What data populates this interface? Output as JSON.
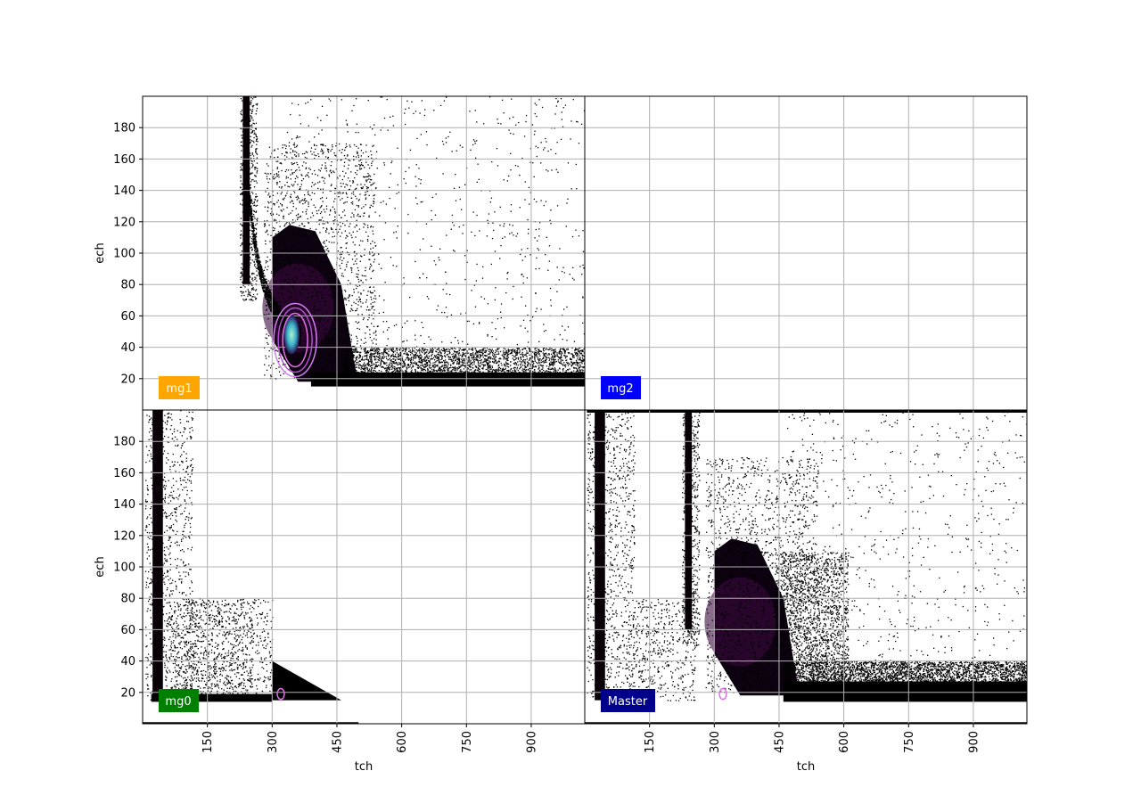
{
  "chart_data": [
    {
      "type": "heatmap",
      "panel": "top-left",
      "label": "mg1",
      "label_color": "#ffa500",
      "xlabel": "",
      "ylabel": "ech",
      "xlim": [
        0,
        1024
      ],
      "ylim": [
        0,
        200
      ],
      "xticks": [],
      "yticks": [
        20,
        40,
        60,
        80,
        100,
        120,
        140,
        160,
        180
      ],
      "grid": true,
      "density": {
        "diagonal_band": {
          "tch": 240,
          "ech_min": 80,
          "ech_max": 200
        },
        "curved_tail": {
          "tch_start": 330,
          "tch_end": 1024,
          "ech_floor": 18
        },
        "dense_region": {
          "tch": [
            300,
            460
          ],
          "ech": [
            20,
            110
          ]
        }
      },
      "contour_peak": {
        "tch": 345,
        "ech": 48
      }
    },
    {
      "type": "heatmap",
      "panel": "top-right",
      "label": "mg2",
      "label_color": "#0000ff",
      "xlabel": "",
      "ylabel": "",
      "xlim": [
        0,
        1024
      ],
      "ylim": [
        0,
        200
      ],
      "xticks": [],
      "yticks": [],
      "grid": true
    },
    {
      "type": "heatmap",
      "panel": "bottom-left",
      "label": "mg0",
      "label_color": "#008000",
      "xlabel": "tch",
      "ylabel": "ech",
      "xlim": [
        0,
        1024
      ],
      "ylim": [
        0,
        200
      ],
      "xticks": [
        150,
        300,
        450,
        600,
        750,
        900
      ],
      "yticks": [
        20,
        40,
        60,
        80,
        100,
        120,
        140,
        160,
        180
      ],
      "grid": true,
      "density": {
        "vertical_band": {
          "tch": 35,
          "ech_min": 15,
          "ech_max": 200
        },
        "wedge": {
          "tch": [
            300,
            460
          ],
          "ech_min": 15,
          "ech_max": 40
        }
      },
      "contour_peak": {
        "tch": 320,
        "ech": 19
      }
    },
    {
      "type": "heatmap",
      "panel": "bottom-right",
      "label": "Master",
      "label_color": "#00008b",
      "xlabel": "tch",
      "ylabel": "",
      "xlim": [
        0,
        1024
      ],
      "ylim": [
        0,
        200
      ],
      "xticks": [
        150,
        300,
        450,
        600,
        750,
        900
      ],
      "yticks": [],
      "grid": true,
      "density": {
        "vertical_band": {
          "tch": 35,
          "ech_min": 15,
          "ech_max": 200
        },
        "diagonal_band": {
          "tch": 240,
          "ech_min": 60,
          "ech_max": 200
        },
        "dense_region": {
          "tch": [
            300,
            460
          ],
          "ech": [
            20,
            110
          ]
        },
        "tail": {
          "tch_start": 460,
          "tch_end": 1024,
          "ech_floor": 15
        }
      },
      "contour_peak": {
        "tch": 320,
        "ech": 19
      }
    }
  ]
}
